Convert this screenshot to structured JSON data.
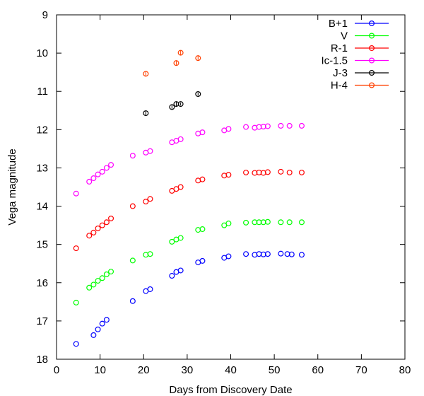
{
  "chart_data": {
    "type": "scatter",
    "xlabel": "Days from Discovery Date",
    "ylabel": "Vega magnitude",
    "xlim": [
      0,
      80
    ],
    "ylim": [
      9,
      18
    ],
    "y_inverted": true,
    "xticks": [
      0,
      10,
      20,
      30,
      40,
      50,
      60,
      70,
      80
    ],
    "yticks": [
      9,
      10,
      11,
      12,
      13,
      14,
      15,
      16,
      17,
      18
    ],
    "grid": false,
    "legend_position": "top-right",
    "series": [
      {
        "name": "B+1",
        "color": "#0000ff",
        "x": [
          4.5,
          8.5,
          9.5,
          10.5,
          11.5,
          17.5,
          20.5,
          21.5,
          26.5,
          27.5,
          28.5,
          32.5,
          33.5,
          38.5,
          39.5,
          43.5,
          45.5,
          46.5,
          47.5,
          48.5,
          51.5,
          53.0,
          54.0,
          56.3
        ],
        "y": [
          17.6,
          17.37,
          17.22,
          17.07,
          16.97,
          16.48,
          16.22,
          16.17,
          15.82,
          15.72,
          15.68,
          15.47,
          15.43,
          15.35,
          15.31,
          15.25,
          15.27,
          15.25,
          15.26,
          15.25,
          15.24,
          15.25,
          15.26,
          15.27
        ],
        "yerr": [
          0,
          0,
          0,
          0,
          0,
          0,
          0,
          0,
          0,
          0,
          0,
          0,
          0,
          0,
          0,
          0,
          0,
          0,
          0,
          0,
          0,
          0,
          0,
          0
        ]
      },
      {
        "name": "V",
        "color": "#00ff00",
        "x": [
          4.5,
          7.5,
          8.5,
          9.5,
          10.5,
          11.5,
          12.5,
          17.5,
          20.5,
          21.5,
          26.5,
          27.5,
          28.5,
          32.5,
          33.5,
          38.5,
          39.5,
          43.5,
          45.5,
          46.5,
          47.5,
          48.5,
          51.5,
          53.5,
          56.3
        ],
        "y": [
          16.52,
          16.13,
          16.05,
          15.95,
          15.88,
          15.78,
          15.71,
          15.42,
          15.27,
          15.25,
          14.93,
          14.87,
          14.83,
          14.62,
          14.6,
          14.5,
          14.45,
          14.43,
          14.42,
          14.42,
          14.42,
          14.41,
          14.42,
          14.42,
          14.42
        ],
        "yerr": [
          0,
          0,
          0,
          0,
          0,
          0,
          0,
          0,
          0,
          0,
          0,
          0,
          0,
          0,
          0,
          0,
          0,
          0,
          0,
          0,
          0,
          0,
          0,
          0,
          0
        ]
      },
      {
        "name": "R-1",
        "color": "#ff0000",
        "x": [
          4.5,
          7.5,
          8.5,
          9.5,
          10.5,
          11.5,
          12.5,
          17.5,
          20.5,
          21.5,
          26.5,
          27.5,
          28.5,
          32.5,
          33.5,
          38.5,
          39.5,
          43.5,
          45.5,
          46.5,
          47.5,
          48.5,
          51.5,
          53.5,
          56.3
        ],
        "y": [
          15.1,
          14.77,
          14.69,
          14.58,
          14.5,
          14.42,
          14.32,
          14.0,
          13.88,
          13.81,
          13.6,
          13.55,
          13.5,
          13.33,
          13.3,
          13.2,
          13.18,
          13.12,
          13.13,
          13.12,
          13.13,
          13.11,
          13.1,
          13.12,
          13.12
        ],
        "yerr": [
          0,
          0,
          0,
          0,
          0,
          0,
          0,
          0,
          0,
          0,
          0,
          0,
          0,
          0,
          0,
          0,
          0,
          0,
          0,
          0,
          0,
          0,
          0,
          0,
          0
        ]
      },
      {
        "name": "Ic-1.5",
        "color": "#ff00ff",
        "x": [
          4.5,
          7.5,
          8.5,
          9.5,
          10.5,
          11.5,
          12.5,
          17.5,
          20.5,
          21.5,
          26.5,
          27.5,
          28.5,
          32.5,
          33.5,
          38.5,
          39.5,
          43.5,
          45.5,
          46.5,
          47.5,
          48.5,
          51.5,
          53.5,
          56.3
        ],
        "y": [
          13.67,
          13.36,
          13.27,
          13.17,
          13.1,
          13.0,
          12.92,
          12.68,
          12.6,
          12.56,
          12.33,
          12.29,
          12.25,
          12.1,
          12.07,
          12.02,
          11.98,
          11.93,
          11.95,
          11.93,
          11.92,
          11.91,
          11.9,
          11.9,
          11.9
        ],
        "yerr": [
          0,
          0,
          0,
          0,
          0,
          0,
          0,
          0,
          0,
          0,
          0,
          0,
          0,
          0,
          0,
          0,
          0,
          0,
          0,
          0,
          0,
          0,
          0,
          0,
          0
        ]
      },
      {
        "name": "J-3",
        "color": "#000000",
        "x": [
          20.5,
          26.5,
          27.5,
          28.5,
          32.5
        ],
        "y": [
          11.57,
          11.41,
          11.33,
          11.33,
          11.07
        ],
        "yerr": [
          0.07,
          0.05,
          0.06,
          0.04,
          0.04
        ]
      },
      {
        "name": "H-4",
        "color": "#ff4000",
        "x": [
          20.5,
          27.5,
          28.5,
          32.5
        ],
        "y": [
          10.54,
          10.26,
          9.99,
          10.13
        ],
        "yerr": [
          0.07,
          0.05,
          0.06,
          0.05
        ]
      }
    ]
  }
}
